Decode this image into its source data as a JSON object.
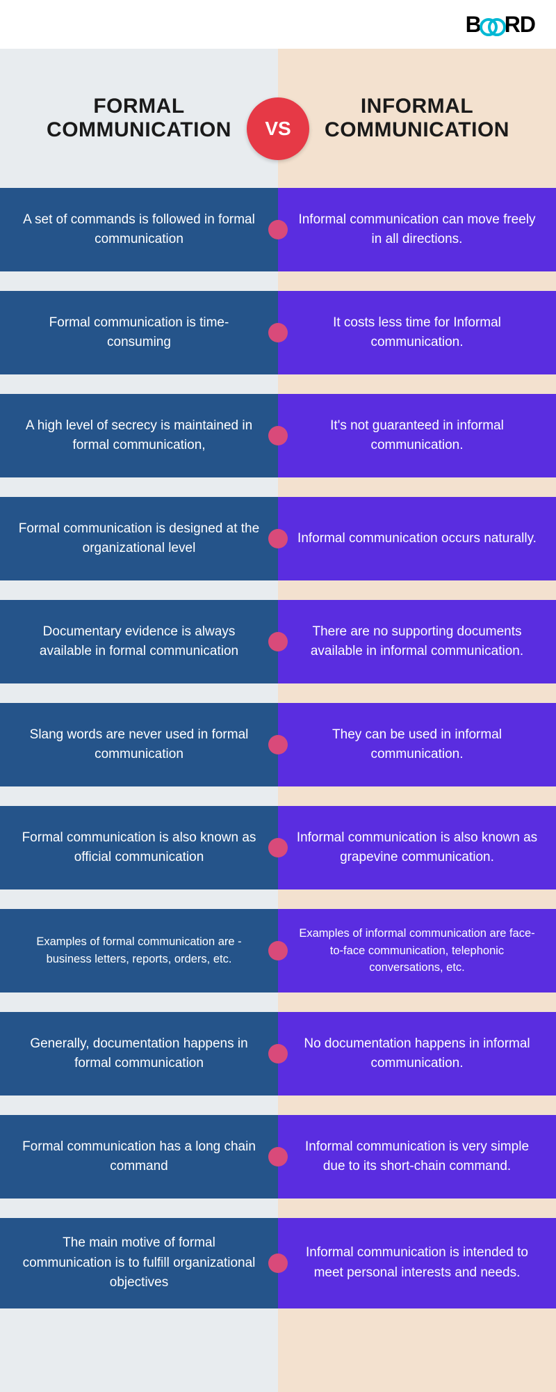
{
  "logo_text_prefix": "B",
  "logo_text_suffix": "RD",
  "vs_label": "VS",
  "left_title": "FORMAL COMMUNICATION",
  "right_title": "INFORMAL COMMUNICATION",
  "colors": {
    "left_bg": "#e8ecef",
    "right_bg": "#f3e1cf",
    "left_cell": "#25548a",
    "right_cell": "#5a2de0",
    "dot": "#d94a7a",
    "vs_bg": "#e63946",
    "logo_accent": "#00b8d4"
  },
  "rows": [
    {
      "left": "A set of commands is followed in formal communication",
      "right": "Informal communication can move freely in all directions."
    },
    {
      "left": "Formal communication is time-consuming",
      "right": "It costs less time for Informal communication."
    },
    {
      "left": "A high level of secrecy is maintained in formal communication,",
      "right": "It's not guaranteed in informal communication."
    },
    {
      "left": "Formal communication is designed at the organizational level",
      "right": "Informal communication occurs naturally."
    },
    {
      "left": "Documentary evidence is always available in formal communication",
      "right": "There are no supporting documents available in informal communication."
    },
    {
      "left": "Slang words are never used in formal communication",
      "right": "They can be used in informal communication."
    },
    {
      "left": "Formal communication is also known as official communication",
      "right": "Informal communication is also known as grapevine communication."
    },
    {
      "left": "Examples of formal communication are - business letters, reports, orders, etc.",
      "right": "Examples of informal communication are face-to-face communication, telephonic conversations, etc.",
      "small": true
    },
    {
      "left": "Generally, documentation happens in formal communication",
      "right": "No documentation happens in informal communication."
    },
    {
      "left": "Formal communication has a long chain command",
      "right": "Informal communication is very simple due to its short-chain command."
    },
    {
      "left": "The main motive of formal communication is to fulfill organizational objectives",
      "right": "Informal communication is intended to meet personal interests and needs."
    }
  ]
}
